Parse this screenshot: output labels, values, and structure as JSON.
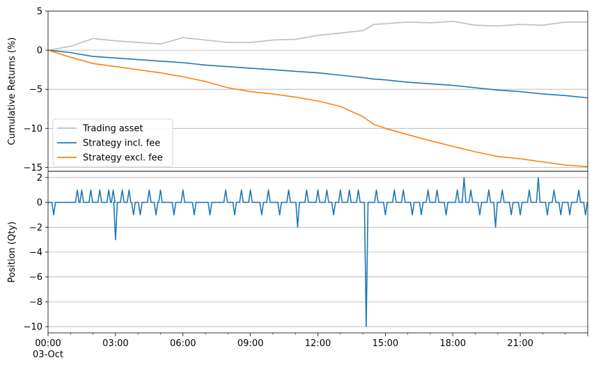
{
  "chart_data": [
    {
      "type": "line",
      "ylabel": "Cumulative Returns (%)",
      "ylim": [
        -15.5,
        5
      ],
      "yticks": [
        5,
        0,
        -5,
        -10,
        -15
      ],
      "yticklabels": [
        "5",
        "0",
        "−5",
        "−10",
        "−15"
      ],
      "grid": "horizontal",
      "legend_position": "lower-left",
      "x_hours": [
        0,
        1,
        2,
        3,
        4,
        5,
        6,
        7,
        8,
        9,
        10,
        11,
        12,
        13,
        14,
        14.5,
        15,
        16,
        17,
        18,
        19,
        20,
        21,
        22,
        23,
        24
      ],
      "series": [
        {
          "name": "Trading asset",
          "color": "#bdbdbd",
          "values": [
            0,
            0.5,
            1.5,
            1.2,
            1.0,
            0.8,
            1.6,
            1.3,
            1.0,
            1.0,
            1.3,
            1.4,
            1.9,
            2.2,
            2.5,
            3.3,
            3.4,
            3.6,
            3.5,
            3.7,
            3.2,
            3.1,
            3.3,
            3.2,
            3.6,
            3.6
          ]
        },
        {
          "name": "Strategy incl. fee",
          "color": "#1f77b4",
          "values": [
            0,
            -0.3,
            -0.8,
            -1.0,
            -1.2,
            -1.4,
            -1.6,
            -1.9,
            -2.1,
            -2.3,
            -2.5,
            -2.7,
            -2.9,
            -3.2,
            -3.5,
            -3.7,
            -3.8,
            -4.1,
            -4.3,
            -4.5,
            -4.8,
            -5.1,
            -5.3,
            -5.6,
            -5.8,
            -6.1
          ]
        },
        {
          "name": "Strategy excl. fee",
          "color": "#ff7f0e",
          "values": [
            0,
            -0.9,
            -1.7,
            -2.1,
            -2.5,
            -2.9,
            -3.4,
            -4.0,
            -4.8,
            -5.3,
            -5.6,
            -6.0,
            -6.5,
            -7.2,
            -8.5,
            -9.5,
            -10.0,
            -10.8,
            -11.6,
            -12.3,
            -13.0,
            -13.6,
            -13.9,
            -14.3,
            -14.7,
            -14.9
          ]
        }
      ]
    },
    {
      "type": "line",
      "ylabel": "Position (Qty)",
      "ylim": [
        -10.5,
        2.5
      ],
      "yticks": [
        2,
        0,
        -2,
        -4,
        -6,
        -8,
        -10
      ],
      "yticklabels": [
        "2",
        "0",
        "−2",
        "−4",
        "−6",
        "−8",
        "−10"
      ],
      "grid": "horizontal",
      "xticks_hours": [
        0,
        3,
        6,
        9,
        12,
        15,
        18,
        21
      ],
      "xticklabels": [
        "00:00",
        "03:00",
        "06:00",
        "09:00",
        "12:00",
        "15:00",
        "18:00",
        "21:00"
      ],
      "x_sub_label": "03-Oct",
      "x_range_hours": [
        0,
        24
      ],
      "series": [
        {
          "color": "#1f77b4",
          "spikes": [
            {
              "t": 0.25,
              "v": -1
            },
            {
              "t": 1.3,
              "v": 1
            },
            {
              "t": 1.5,
              "v": 1
            },
            {
              "t": 1.9,
              "v": 1
            },
            {
              "t": 2.3,
              "v": 1
            },
            {
              "t": 2.7,
              "v": 1
            },
            {
              "t": 2.9,
              "v": 1
            },
            {
              "t": 3.0,
              "v": -3
            },
            {
              "t": 3.3,
              "v": 1
            },
            {
              "t": 3.6,
              "v": 1
            },
            {
              "t": 3.8,
              "v": -1
            },
            {
              "t": 4.1,
              "v": -1
            },
            {
              "t": 4.5,
              "v": 1
            },
            {
              "t": 4.8,
              "v": -1
            },
            {
              "t": 5.0,
              "v": 1
            },
            {
              "t": 5.6,
              "v": -1
            },
            {
              "t": 6.0,
              "v": 1
            },
            {
              "t": 6.5,
              "v": -1
            },
            {
              "t": 7.2,
              "v": -1
            },
            {
              "t": 7.9,
              "v": 1
            },
            {
              "t": 8.3,
              "v": -1
            },
            {
              "t": 8.6,
              "v": 1
            },
            {
              "t": 9.0,
              "v": 1
            },
            {
              "t": 9.5,
              "v": -1
            },
            {
              "t": 9.8,
              "v": 1
            },
            {
              "t": 10.3,
              "v": -1
            },
            {
              "t": 10.7,
              "v": 1
            },
            {
              "t": 11.1,
              "v": -2
            },
            {
              "t": 11.5,
              "v": 1
            },
            {
              "t": 12.0,
              "v": 1
            },
            {
              "t": 12.4,
              "v": 1
            },
            {
              "t": 12.7,
              "v": -1
            },
            {
              "t": 13.0,
              "v": 1
            },
            {
              "t": 13.4,
              "v": 1
            },
            {
              "t": 13.8,
              "v": 1
            },
            {
              "t": 14.15,
              "v": -10
            },
            {
              "t": 14.6,
              "v": 1
            },
            {
              "t": 15.0,
              "v": -1
            },
            {
              "t": 15.4,
              "v": 1
            },
            {
              "t": 15.8,
              "v": 1
            },
            {
              "t": 16.2,
              "v": -1
            },
            {
              "t": 16.6,
              "v": -1
            },
            {
              "t": 16.9,
              "v": 1
            },
            {
              "t": 17.3,
              "v": 1
            },
            {
              "t": 17.7,
              "v": -1
            },
            {
              "t": 18.2,
              "v": 1
            },
            {
              "t": 18.5,
              "v": 2
            },
            {
              "t": 18.8,
              "v": 1
            },
            {
              "t": 19.2,
              "v": -1
            },
            {
              "t": 19.6,
              "v": 1
            },
            {
              "t": 19.9,
              "v": -2
            },
            {
              "t": 20.2,
              "v": 1
            },
            {
              "t": 20.6,
              "v": -1
            },
            {
              "t": 21.0,
              "v": -1
            },
            {
              "t": 21.4,
              "v": 1
            },
            {
              "t": 21.8,
              "v": 2
            },
            {
              "t": 22.2,
              "v": -1
            },
            {
              "t": 22.5,
              "v": 1
            },
            {
              "t": 22.8,
              "v": -1
            },
            {
              "t": 23.2,
              "v": -1
            },
            {
              "t": 23.6,
              "v": 1
            },
            {
              "t": 23.9,
              "v": -1
            }
          ]
        }
      ]
    }
  ]
}
